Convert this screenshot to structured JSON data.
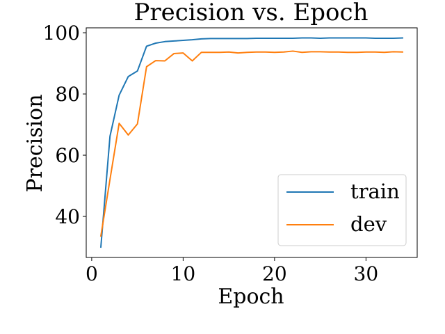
{
  "chart_data": {
    "type": "line",
    "title": "Precision vs. Epoch",
    "xlabel": "Epoch",
    "ylabel": "Precision",
    "xlim": [
      -0.6,
      35.6
    ],
    "ylim": [
      26.6,
      101.6
    ],
    "xticks": [
      0,
      10,
      20,
      30
    ],
    "yticks": [
      40,
      60,
      80,
      100
    ],
    "grid": false,
    "legend_position": "lower right",
    "x": [
      1,
      2,
      3,
      4,
      5,
      6,
      7,
      8,
      9,
      10,
      11,
      12,
      13,
      14,
      15,
      16,
      17,
      18,
      19,
      20,
      21,
      22,
      23,
      24,
      25,
      26,
      27,
      28,
      29,
      30,
      31,
      32,
      33,
      34
    ],
    "series": [
      {
        "name": "train",
        "color": "#1f77b4",
        "values": [
          30.0,
          66.2,
          79.6,
          85.7,
          87.5,
          95.6,
          96.6,
          97.1,
          97.3,
          97.5,
          97.7,
          98.0,
          98.1,
          98.1,
          98.1,
          98.1,
          98.1,
          98.2,
          98.2,
          98.2,
          98.2,
          98.2,
          98.3,
          98.3,
          98.2,
          98.3,
          98.3,
          98.3,
          98.3,
          98.3,
          98.2,
          98.2,
          98.2,
          98.3
        ]
      },
      {
        "name": "dev",
        "color": "#ff7f0e",
        "values": [
          33.6,
          52.1,
          70.4,
          66.6,
          70.2,
          88.9,
          90.9,
          90.8,
          93.2,
          93.4,
          90.8,
          93.6,
          93.6,
          93.6,
          93.7,
          93.4,
          93.6,
          93.7,
          93.7,
          93.6,
          93.7,
          94.0,
          93.6,
          93.8,
          93.8,
          93.7,
          93.7,
          93.6,
          93.6,
          93.7,
          93.7,
          93.6,
          93.8,
          93.7
        ]
      }
    ]
  }
}
